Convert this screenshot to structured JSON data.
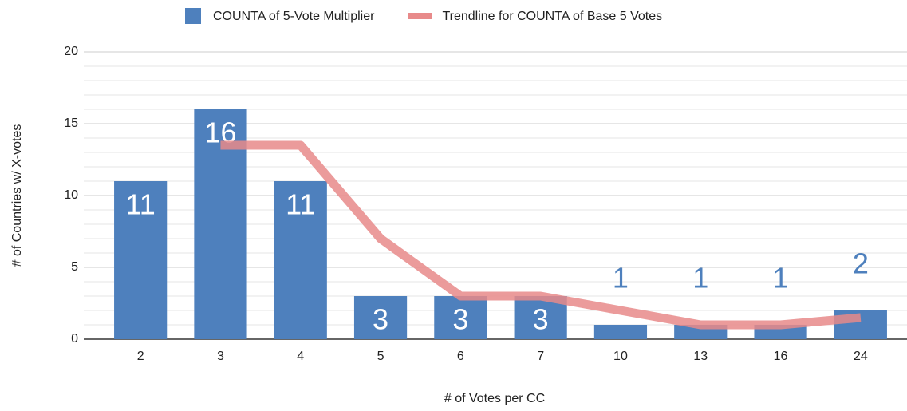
{
  "chart_data": {
    "type": "bar",
    "x_label": "# of Votes per CC",
    "y_label": "# of Countries w/ X-votes",
    "categories": [
      "2",
      "3",
      "4",
      "5",
      "6",
      "7",
      "10",
      "13",
      "16",
      "24"
    ],
    "series": [
      {
        "name": "COUNTA of 5-Vote Multiplier",
        "type": "bar",
        "color": "#4e80bd",
        "values": [
          11,
          16,
          11,
          3,
          3,
          3,
          1,
          1,
          1,
          2
        ]
      },
      {
        "name": "Trendline for COUNTA of Base 5 Votes",
        "type": "line",
        "color": "#e88a8a",
        "values": [
          null,
          13.5,
          13.5,
          7,
          3,
          3,
          2,
          1,
          1,
          1.5
        ]
      }
    ],
    "ylim": [
      0,
      20
    ],
    "yticks": [
      0,
      5,
      10,
      15,
      20
    ],
    "grid": true,
    "legend": "top"
  }
}
